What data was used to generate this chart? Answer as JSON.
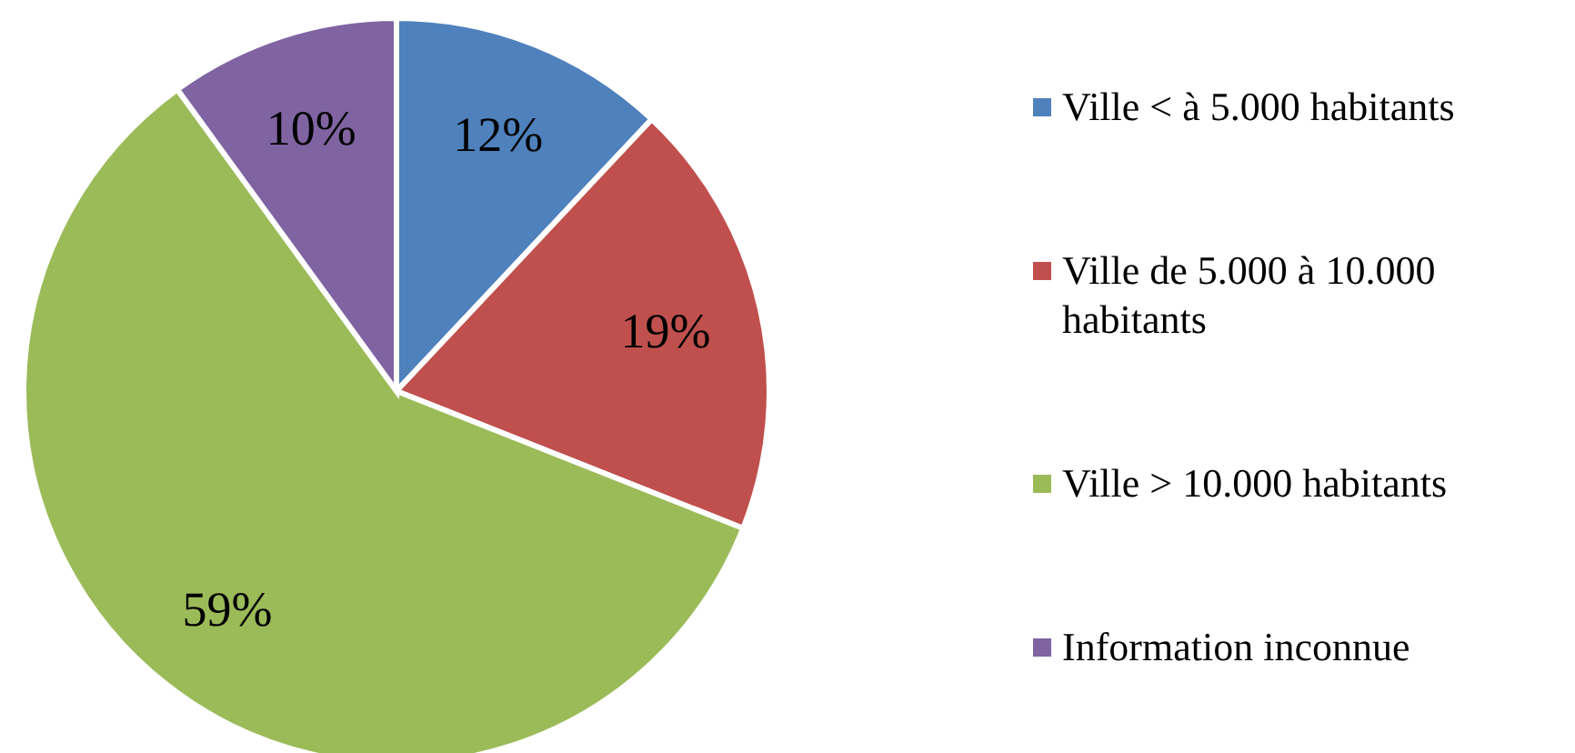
{
  "chart_data": {
    "type": "pie",
    "categories": [
      "Ville < à 5.000 habitants",
      "Ville de 5.000 à 10.000 habitants",
      "Ville > 10.000 habitants",
      "Information inconnue"
    ],
    "values": [
      12,
      19,
      59,
      10
    ],
    "colors": [
      "#4f81bd",
      "#c0504d",
      "#9bbb59",
      "#8064a2"
    ],
    "value_labels": [
      "12%",
      "19%",
      "59%",
      "10%"
    ],
    "legend": "right"
  }
}
